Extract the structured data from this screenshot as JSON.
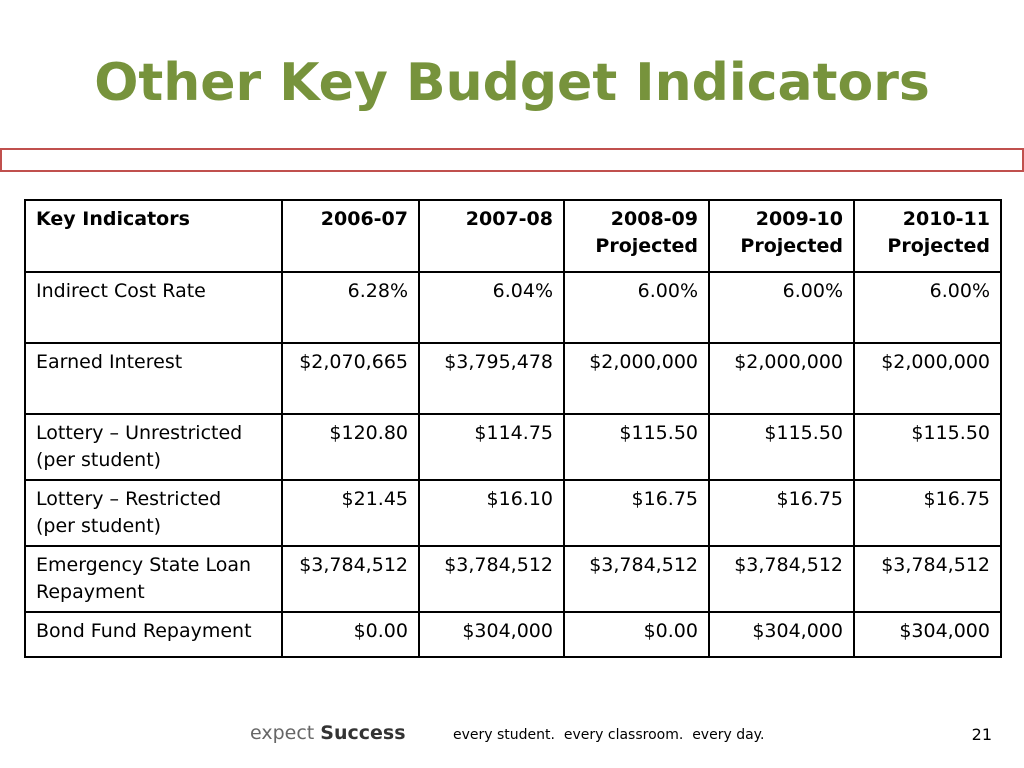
{
  "slide": {
    "title": "Other Key Budget Indicators",
    "page_number": "21"
  },
  "table": {
    "headers": [
      {
        "line1": "Key Indicators",
        "line2": ""
      },
      {
        "line1": "2006-07",
        "line2": ""
      },
      {
        "line1": "2007-08",
        "line2": ""
      },
      {
        "line1": "2008-09",
        "line2": "Projected"
      },
      {
        "line1": "2009-10",
        "line2": "Projected"
      },
      {
        "line1": "2010-11",
        "line2": "Projected"
      }
    ],
    "rows": [
      {
        "label_line1": "Indirect Cost Rate",
        "label_line2": "",
        "values": [
          "6.28%",
          "6.04%",
          "6.00%",
          "6.00%",
          "6.00%"
        ]
      },
      {
        "label_line1": "Earned Interest",
        "label_line2": "",
        "values": [
          "$2,070,665",
          "$3,795,478",
          "$2,000,000",
          "$2,000,000",
          "$2,000,000"
        ]
      },
      {
        "label_line1": "Lottery – Unrestricted",
        "label_line2": "(per student)",
        "values": [
          "$120.80",
          "$114.75",
          "$115.50",
          "$115.50",
          "$115.50"
        ]
      },
      {
        "label_line1": "Lottery – Restricted",
        "label_line2": "(per student)",
        "values": [
          "$21.45",
          "$16.10",
          "$16.75",
          "$16.75",
          "$16.75"
        ]
      },
      {
        "label_line1": "Emergency State Loan",
        "label_line2": "Repayment",
        "values": [
          "$3,784,512",
          "$3,784,512",
          "$3,784,512",
          "$3,784,512",
          "$3,784,512"
        ]
      },
      {
        "label_line1": "Bond Fund Repayment",
        "label_line2": "",
        "values": [
          "$0.00",
          "$304,000",
          "$0.00",
          "$304,000",
          "$304,000"
        ]
      }
    ]
  },
  "footer": {
    "brand_light": "expect",
    "brand_bold": "Success",
    "tagline": "every student.  every classroom.  every day."
  },
  "colors": {
    "title": "#77933c",
    "title_bar_border": "#c0504d"
  }
}
